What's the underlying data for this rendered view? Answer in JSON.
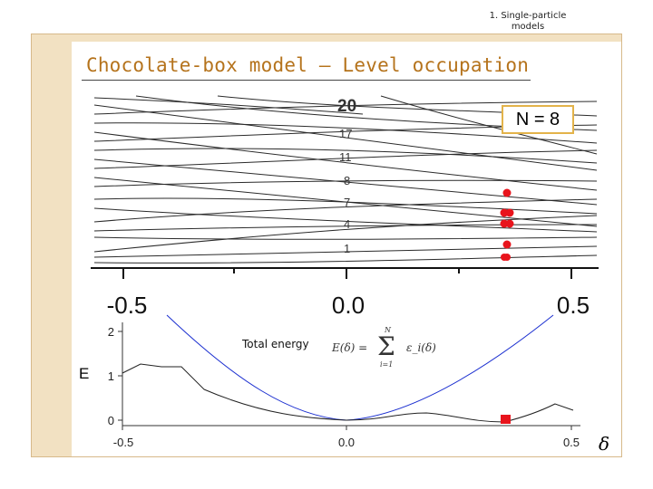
{
  "header": {
    "section": "1. Single-particle models"
  },
  "title": "Chocolate-box model – Level occupation",
  "colors": {
    "title": "#b5731c",
    "frame": "#f2e1c2",
    "n_box_border": "#e3b34a",
    "dots": "#e8141c",
    "energy_curve": "#1b2fd0"
  },
  "upper_plot": {
    "level_labels": [
      "20",
      "17",
      "11",
      "8",
      "7",
      "4",
      "1"
    ],
    "n_box": "N = 8",
    "x_ticks": [
      "-0.5",
      "0.0",
      "0.5"
    ],
    "occupied_dot_count": 8
  },
  "lower_plot": {
    "y_label": "E",
    "y_ticks": [
      "2",
      "1",
      "0"
    ],
    "x_ticks": [
      "-0.5",
      "0.0",
      "0.5"
    ],
    "total_energy_label": "Total energy",
    "formula": {
      "lhs": "E(δ) =",
      "sum_symbol": "Σ",
      "upper": "N",
      "lower": "i=1",
      "rhs": "ε_i(δ)"
    },
    "x_symbol": "δ"
  },
  "chart_data": [
    {
      "type": "line",
      "description": "Single-particle level diagram vs deformation delta",
      "x_ticks": [
        -0.5,
        0.0,
        0.5
      ],
      "level_labels": [
        "1",
        "4",
        "7",
        "8",
        "11",
        "17",
        "20"
      ],
      "occupied_levels": "lowest levels up to N = 8 at delta ≈ 0.35"
    },
    {
      "type": "line",
      "ylabel": "E",
      "xlim": [
        -0.5,
        0.5
      ],
      "ylim": [
        0,
        2
      ],
      "series": [
        {
          "name": "",
          "x": [
            -0.5,
            -0.2,
            0.0,
            0.2,
            0.5
          ],
          "y": [
            2.4,
            0.6,
            0.0,
            0.6,
            2.4
          ]
        },
        {
          "name": "Total energy",
          "x": [
            -0.5,
            -0.45,
            -0.38,
            -0.3,
            -0.15,
            0.0,
            0.15,
            0.3,
            0.35,
            0.45,
            0.5
          ],
          "y": [
            1.2,
            1.4,
            1.4,
            1.0,
            0.35,
            0.05,
            0.12,
            0.05,
            0.0,
            0.3,
            0.25
          ]
        }
      ],
      "marker": {
        "x": 0.35,
        "y": 0.0,
        "shape": "square",
        "color": "#e8141c"
      }
    }
  ]
}
